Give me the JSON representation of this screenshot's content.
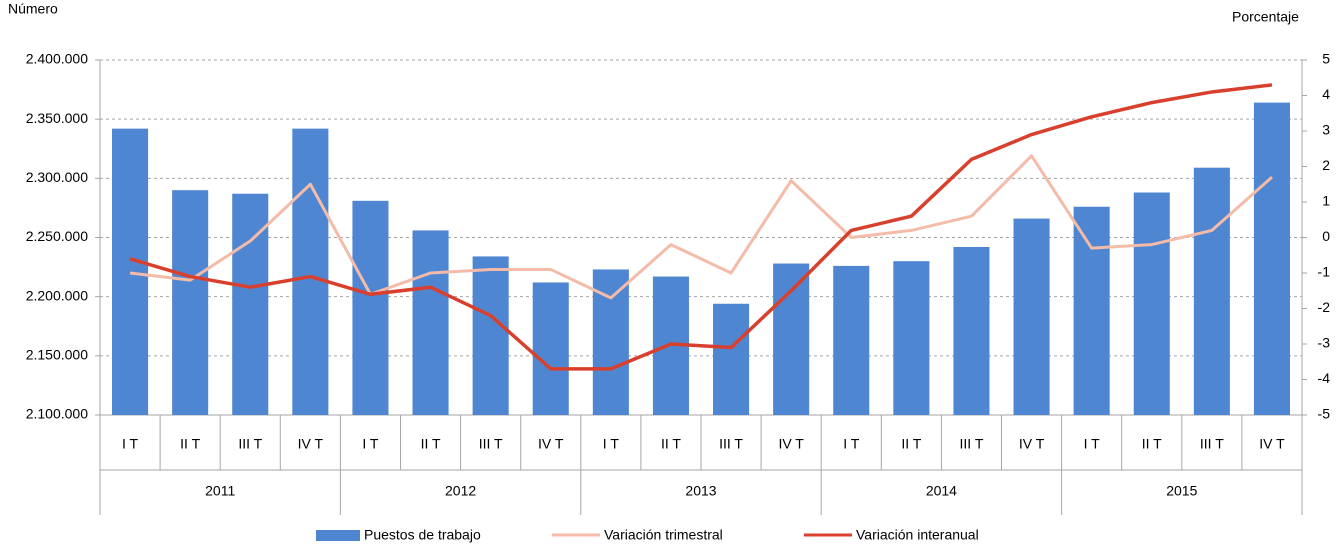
{
  "chart_data": {
    "type": "bar",
    "y_axis_label": "Número",
    "y2_axis_label": "Porcentaje",
    "categories": [
      "I T",
      "II T",
      "III T",
      "IV T",
      "I T",
      "II T",
      "III T",
      "IV T",
      "I T",
      "II T",
      "III T",
      "IV T",
      "I T",
      "II T",
      "III T",
      "IV T",
      "I T",
      "II T",
      "III T",
      "IV T"
    ],
    "groups": [
      "2011",
      "2012",
      "2013",
      "2014",
      "2015"
    ],
    "series": [
      {
        "name": "Puestos de trabajo",
        "type": "bar",
        "color": "#4f86d2",
        "values": [
          2342000,
          2290000,
          2287000,
          2342000,
          2281000,
          2256000,
          2234000,
          2212000,
          2223000,
          2217000,
          2194000,
          2228000,
          2226000,
          2230000,
          2242000,
          2266000,
          2276000,
          2288000,
          2309000,
          2364000
        ]
      },
      {
        "name": "Variación trimestral",
        "type": "line",
        "axis": "y2",
        "color": "#f4bba8",
        "values": [
          -1.0,
          -1.2,
          -0.1,
          1.5,
          -1.6,
          -1.0,
          -0.9,
          -0.9,
          -1.7,
          -0.2,
          -1.0,
          1.6,
          0.0,
          0.2,
          0.6,
          2.3,
          -0.3,
          -0.2,
          0.2,
          1.7
        ]
      },
      {
        "name": "Variación interanual",
        "type": "line",
        "axis": "y2",
        "color": "#d8402d",
        "values": [
          -0.6,
          -1.1,
          -1.4,
          -1.1,
          -1.6,
          -1.4,
          -2.2,
          -3.7,
          -3.7,
          -3.0,
          -3.1,
          -1.5,
          0.2,
          0.6,
          2.2,
          2.9,
          3.4,
          3.8,
          4.1,
          4.3
        ]
      }
    ],
    "ylim": [
      2100000,
      2400000
    ],
    "yticks": [
      {
        "value": 2100000,
        "label": "2.100.000"
      },
      {
        "value": 2150000,
        "label": "2.150.000"
      },
      {
        "value": 2200000,
        "label": "2.200.000"
      },
      {
        "value": 2250000,
        "label": "2.250.000"
      },
      {
        "value": 2300000,
        "label": "2.300.000"
      },
      {
        "value": 2350000,
        "label": "2.350.000"
      },
      {
        "value": 2400000,
        "label": "2.400.000"
      }
    ],
    "y2lim": [
      -5,
      5
    ],
    "y2ticks": [
      -5,
      -4,
      -3,
      -2,
      -1,
      0,
      1,
      2,
      3,
      4,
      5
    ],
    "grid": true,
    "legend": "bottom"
  }
}
